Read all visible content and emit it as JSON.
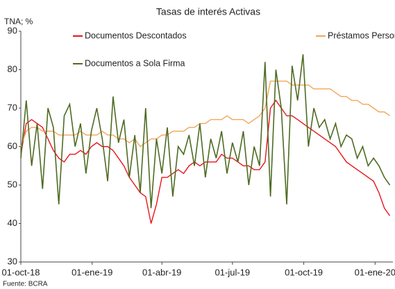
{
  "chart_data": {
    "type": "line",
    "title": "Tasas de interés Activas",
    "y_label": "TNA; %",
    "source": "Fuente: BCRA",
    "x": [
      "2018-10-01",
      "2018-10-08",
      "2018-10-15",
      "2018-10-22",
      "2018-10-29",
      "2018-11-05",
      "2018-11-12",
      "2018-11-19",
      "2018-11-26",
      "2018-12-03",
      "2018-12-10",
      "2018-12-17",
      "2018-12-24",
      "2018-12-31",
      "2019-01-07",
      "2019-01-14",
      "2019-01-21",
      "2019-01-28",
      "2019-02-04",
      "2019-02-11",
      "2019-02-18",
      "2019-02-25",
      "2019-03-04",
      "2019-03-11",
      "2019-03-18",
      "2019-03-25",
      "2019-04-01",
      "2019-04-08",
      "2019-04-15",
      "2019-04-22",
      "2019-04-29",
      "2019-05-06",
      "2019-05-13",
      "2019-05-20",
      "2019-05-27",
      "2019-06-03",
      "2019-06-10",
      "2019-06-17",
      "2019-06-24",
      "2019-07-01",
      "2019-07-08",
      "2019-07-15",
      "2019-07-22",
      "2019-07-29",
      "2019-08-05",
      "2019-08-12",
      "2019-08-19",
      "2019-08-26",
      "2019-09-02",
      "2019-09-09",
      "2019-09-16",
      "2019-09-23",
      "2019-09-30",
      "2019-10-07",
      "2019-10-14",
      "2019-10-21",
      "2019-10-28",
      "2019-11-04",
      "2019-11-11",
      "2019-11-18",
      "2019-11-25",
      "2019-12-02",
      "2019-12-09",
      "2019-12-16",
      "2019-12-23",
      "2019-12-30",
      "2020-01-06",
      "2020-01-13",
      "2020-01-20"
    ],
    "series": [
      {
        "name": "Documentos Descontados",
        "color": "#e8141c",
        "values": [
          58,
          66,
          67,
          66,
          65,
          62,
          59,
          57,
          56,
          58,
          58,
          59,
          58,
          60,
          61,
          60,
          60,
          59,
          57,
          55,
          52,
          50,
          48,
          47,
          40,
          45,
          52,
          52,
          53,
          54,
          53,
          55,
          56,
          55,
          56,
          56,
          56,
          58,
          57,
          57,
          56,
          55,
          55,
          54,
          54,
          56,
          70,
          72,
          70,
          68,
          68,
          67,
          66,
          65,
          64,
          63,
          62,
          61,
          60,
          58,
          56,
          55,
          54,
          53,
          52,
          51,
          48,
          44,
          42
        ]
      },
      {
        "name": "Préstamos Personales",
        "color": "#f2a55a",
        "values": [
          60,
          64,
          65,
          65,
          64,
          64,
          64,
          63,
          63,
          63,
          63,
          64,
          63,
          63,
          63,
          64,
          63,
          63,
          62,
          62,
          61,
          62,
          60,
          61,
          62,
          62,
          63,
          63,
          64,
          64,
          64,
          65,
          65,
          66,
          66,
          67,
          67,
          67,
          68,
          67,
          67,
          67,
          66,
          67,
          68,
          70,
          77,
          77,
          77,
          77,
          76,
          76,
          76,
          76,
          75,
          75,
          75,
          75,
          74,
          73,
          73,
          72,
          72,
          71,
          71,
          70,
          69,
          69,
          68
        ]
      },
      {
        "name": "Documentos a Sola Firma",
        "color": "#4e6b22",
        "values": [
          57,
          72,
          55,
          66,
          49,
          70,
          65,
          45,
          68,
          71,
          60,
          66,
          53,
          64,
          70,
          62,
          51,
          73,
          61,
          67,
          52,
          63,
          48,
          70,
          44,
          62,
          53,
          65,
          47,
          60,
          58,
          63,
          55,
          66,
          52,
          62,
          57,
          64,
          53,
          61,
          56,
          64,
          50,
          60,
          55,
          82,
          47,
          80,
          70,
          45,
          81,
          72,
          84,
          60,
          70,
          65,
          67,
          62,
          66,
          60,
          63,
          62,
          57,
          60,
          55,
          57,
          55,
          52,
          50
        ]
      }
    ],
    "xlim": [
      "2018-10-01",
      "2020-01-24"
    ],
    "xticks": [
      {
        "value": "2018-10-01",
        "label": "01-oct-18"
      },
      {
        "value": "2019-01-01",
        "label": "01-ene-19"
      },
      {
        "value": "2019-04-01",
        "label": "01-abr-19"
      },
      {
        "value": "2019-07-01",
        "label": "01-jul-19"
      },
      {
        "value": "2019-10-01",
        "label": "01-oct-19"
      },
      {
        "value": "2020-01-01",
        "label": "01-ene-20"
      }
    ],
    "ylim": [
      30,
      90
    ],
    "yticks": [
      30,
      40,
      50,
      60,
      70,
      80,
      90
    ],
    "grid": false
  }
}
